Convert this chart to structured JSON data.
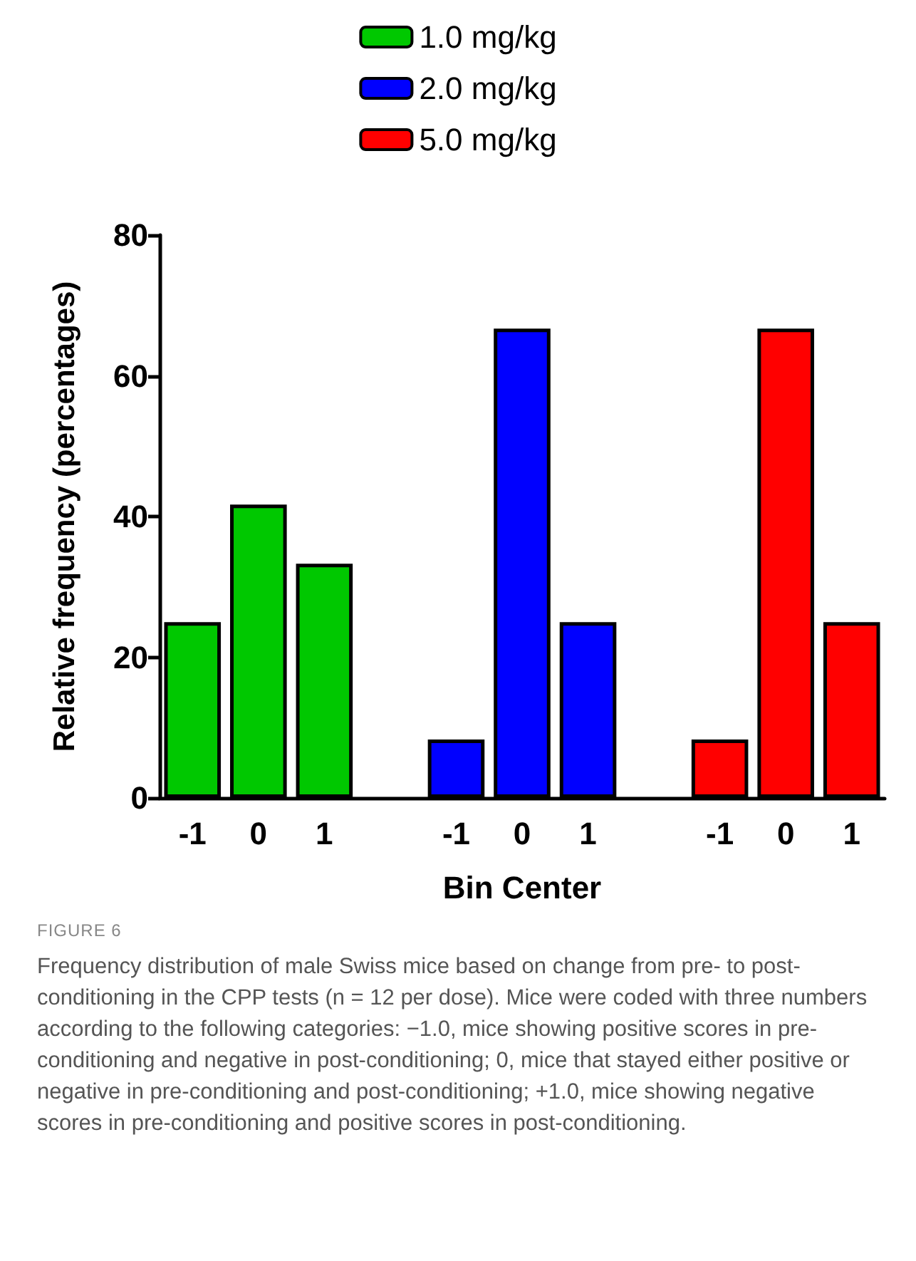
{
  "chart_data": {
    "type": "bar",
    "xlabel": "Bin Center",
    "ylabel": "Relative frequency (percentages)",
    "categories": [
      "-1",
      "0",
      "1",
      null,
      "-1",
      "0",
      "1",
      null,
      "-1",
      "0",
      "1"
    ],
    "series": [
      {
        "name": "1.0 mg/kg",
        "color": "#00c800",
        "values": [
          25,
          41.7,
          33.3,
          null,
          null,
          null,
          null,
          null,
          null,
          null,
          null
        ]
      },
      {
        "name": "2.0 mg/kg",
        "color": "#0000ff",
        "values": [
          null,
          null,
          null,
          null,
          8.3,
          66.7,
          25,
          null,
          null,
          null,
          null
        ]
      },
      {
        "name": "5.0 mg/kg",
        "color": "#ff0000",
        "values": [
          null,
          null,
          null,
          null,
          null,
          null,
          null,
          null,
          8.3,
          66.7,
          25
        ]
      }
    ],
    "ylim": [
      0,
      80
    ],
    "yticks": [
      0,
      20,
      40,
      60,
      80
    ],
    "grid": false,
    "legend": "top",
    "annotations": [
      "FIGURE 6",
      "Frequency distribution of male Swiss mice based on change from pre- to post-conditioning in the CPP tests (n = 12 per dose). Mice were coded with three numbers according to the following categories: −1.0, mice showing positive scores in pre-conditioning and negative in post-conditioning; 0, mice that stayed either positive or negative in pre-conditioning and post-conditioning; +1.0, mice showing negative scores in pre-conditioning and positive scores in post-conditioning."
    ]
  }
}
